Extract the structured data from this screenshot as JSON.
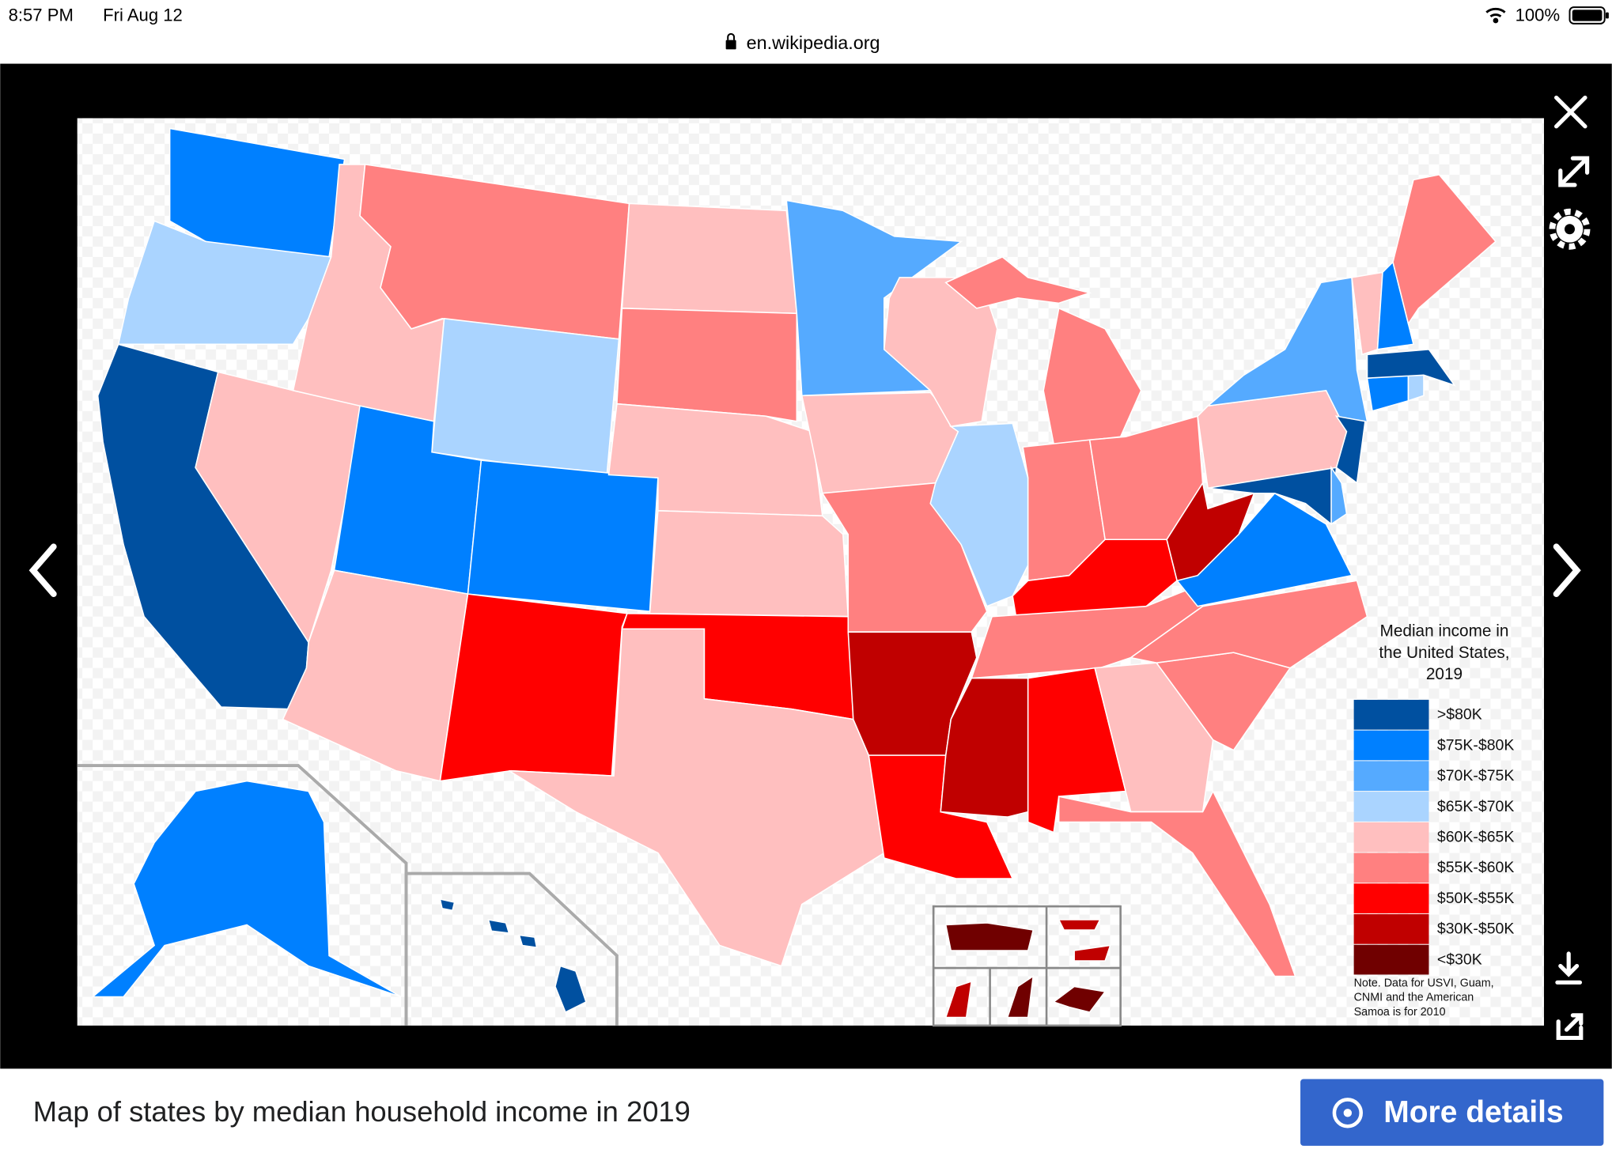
{
  "status_bar": {
    "time": "8:57 PM",
    "date": "Fri Aug 12",
    "url": "en.wikipedia.org",
    "battery": "100%"
  },
  "legend": {
    "title_lines": [
      "Median income in",
      "the United States,",
      "2019"
    ],
    "items": [
      {
        "label": ">$80K",
        "color": "#0050a0"
      },
      {
        "label": "$75K-$80K",
        "color": "#0080ff"
      },
      {
        "label": "$70K-$75K",
        "color": "#55aaff"
      },
      {
        "label": "$65K-$70K",
        "color": "#aad4ff"
      },
      {
        "label": "$60K-$65K",
        "color": "#ffbfbf"
      },
      {
        "label": "$55K-$60K",
        "color": "#ff8080"
      },
      {
        "label": "$50K-$55K",
        "color": "#ff0000"
      },
      {
        "label": "$30K-$50K",
        "color": "#c00000"
      },
      {
        "label": "<$30K",
        "color": "#700000"
      }
    ],
    "note_lines": [
      "Note. Data for USVI, Guam,",
      "CNMI and the American",
      "Samoa is for 2010"
    ]
  },
  "caption": "Map of states by median household income in 2019",
  "button": "More details"
}
